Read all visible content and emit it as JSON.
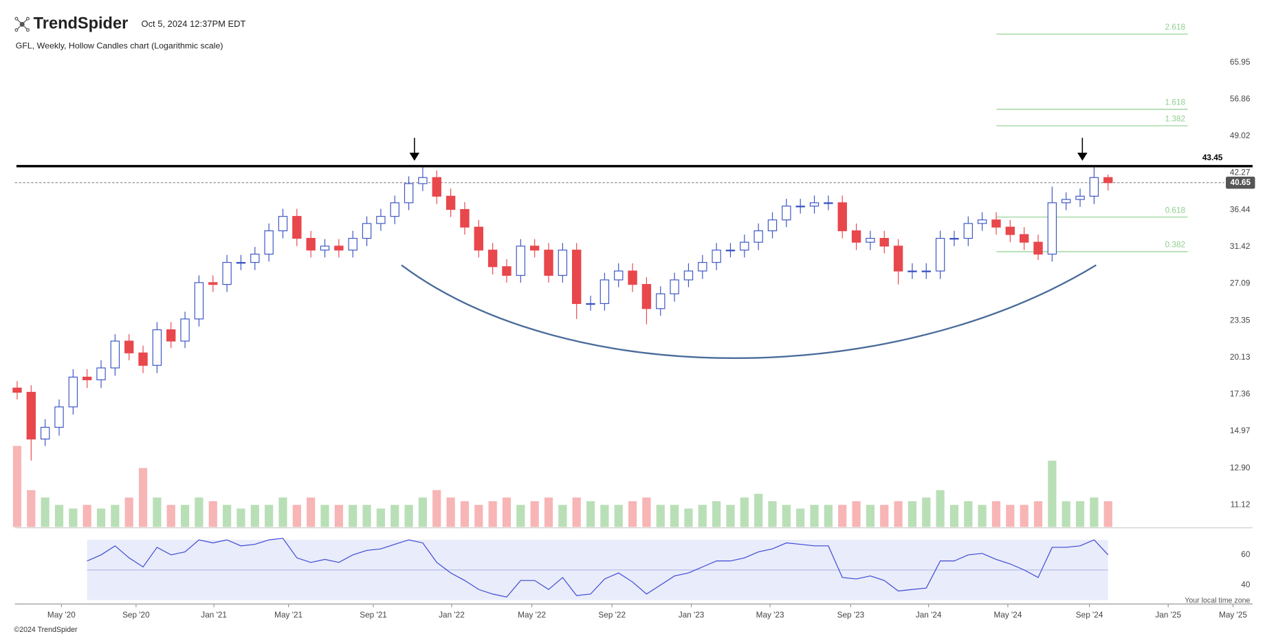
{
  "header": {
    "brand": "TrendSpider",
    "timestamp": "Oct 5, 2024 12:37PM EDT"
  },
  "chart_data": {
    "type": "candlestick",
    "title": "GFL, Weekly, Hollow Candles chart (Logarithmic scale)",
    "log_scale": true,
    "x": [
      0,
      3,
      6,
      9,
      12,
      15,
      18,
      21,
      24,
      27,
      30,
      33,
      36,
      39,
      42,
      45,
      48,
      51,
      54,
      57,
      60,
      63,
      66,
      69,
      72,
      75,
      78,
      81,
      84,
      87,
      90,
      93,
      96,
      99,
      102,
      105,
      108,
      111,
      114,
      117,
      120,
      123,
      126,
      129,
      132,
      135,
      138,
      141,
      144,
      147,
      150,
      153,
      156,
      159,
      162,
      165,
      168,
      171,
      174,
      177,
      180,
      183,
      186,
      189,
      192,
      195,
      198,
      201,
      204,
      207,
      210,
      213,
      216,
      219,
      222,
      225,
      228,
      231,
      234
    ],
    "open": [
      17.8,
      17.5,
      14.5,
      15.2,
      16.5,
      18.6,
      18.4,
      19.3,
      21.5,
      20.5,
      19.5,
      22.5,
      21.5,
      23.5,
      27.2,
      27,
      29.5,
      29.5,
      30.5,
      33.5,
      35.5,
      32.5,
      31,
      31.5,
      31,
      32.5,
      34.5,
      35.5,
      37.5,
      40.5,
      41.5,
      38.5,
      36.5,
      34,
      31,
      29,
      28,
      31.5,
      31,
      28,
      31,
      25,
      25,
      27.5,
      28.5,
      27,
      24.5,
      26,
      27.5,
      28.5,
      29.5,
      31,
      31,
      32,
      33.5,
      35,
      37,
      37,
      37.5,
      37.5,
      33.5,
      32,
      32.5,
      31.5,
      28.5,
      28.5,
      28.5,
      32.5,
      32.5,
      34.5,
      35,
      34,
      33,
      32,
      30.5,
      37.5,
      38,
      38.5,
      41.5
    ],
    "high": [
      18.3,
      18.0,
      15.7,
      17.0,
      19.2,
      19.2,
      19.9,
      22.1,
      22.1,
      21.1,
      23.2,
      23.2,
      24.2,
      28.0,
      28.0,
      30.4,
      30.4,
      31.4,
      34.5,
      36.6,
      36.6,
      33.5,
      32.4,
      32.4,
      33.5,
      35.5,
      36.6,
      38.6,
      41.7,
      43.45,
      42.7,
      39.7,
      37.6,
      35.0,
      31.9,
      29.9,
      32.4,
      32.4,
      31.9,
      31.9,
      31.9,
      25.8,
      28.3,
      29.4,
      29.4,
      27.8,
      26.8,
      28.3,
      29.4,
      30.4,
      31.9,
      31.9,
      33.0,
      34.5,
      36.1,
      38.1,
      38.1,
      38.6,
      38.6,
      38.6,
      34.5,
      33.5,
      33.5,
      32.4,
      29.4,
      29.4,
      33.5,
      33.5,
      35.5,
      36.1,
      36.1,
      35.0,
      34.0,
      33.0,
      40.0,
      39.1,
      39.7,
      43.4,
      42.0
    ],
    "low": [
      17.0,
      13.3,
      14.1,
      14.7,
      16.0,
      17.8,
      17.8,
      18.7,
      19.9,
      18.9,
      18.9,
      20.9,
      20.9,
      22.8,
      26.2,
      26.2,
      28.6,
      28.6,
      29.6,
      32.5,
      31.5,
      30.1,
      30.1,
      30.1,
      30.1,
      31.5,
      33.5,
      34.4,
      36.4,
      39.3,
      37.3,
      35.4,
      33.0,
      30.1,
      28.1,
      27.2,
      27.2,
      30.1,
      27.2,
      27.2,
      23.5,
      24.3,
      24.3,
      26.7,
      26.2,
      23.0,
      23.8,
      25.2,
      26.7,
      27.6,
      28.6,
      30.1,
      30.1,
      31.0,
      32.5,
      34.0,
      35.9,
      35.9,
      36.4,
      32.5,
      31.0,
      31.0,
      30.6,
      27.0,
      27.6,
      27.6,
      27.6,
      31.5,
      31.5,
      33.5,
      33.0,
      32.0,
      31.0,
      29.8,
      29.6,
      36.4,
      36.9,
      37.3,
      39.4
    ],
    "close": [
      17.5,
      14.5,
      15.2,
      16.5,
      18.6,
      18.4,
      19.3,
      21.5,
      20.5,
      19.5,
      22.5,
      21.5,
      23.5,
      27.2,
      27,
      29.5,
      29.5,
      30.5,
      33.5,
      35.5,
      32.5,
      31,
      31.5,
      31,
      32.5,
      34.5,
      35.5,
      37.5,
      40.5,
      41.5,
      38.5,
      36.5,
      34,
      31,
      29,
      28,
      31.5,
      31,
      28,
      31,
      25,
      25,
      27.5,
      28.5,
      27,
      24.5,
      26,
      27.5,
      28.5,
      29.5,
      31,
      31,
      32,
      33.5,
      35,
      37,
      37,
      37.5,
      37.5,
      33.5,
      32,
      32.5,
      31.5,
      28.5,
      28.5,
      28.5,
      32.5,
      32.5,
      34.5,
      35,
      34,
      33,
      32,
      30.5,
      37.5,
      38,
      38.5,
      41.5,
      40.65
    ],
    "volume": [
      11,
      5,
      4,
      3,
      2.5,
      3,
      2.5,
      3,
      4,
      8,
      4,
      3,
      3,
      4,
      3.5,
      3,
      2.5,
      3,
      3,
      4,
      3,
      4,
      3,
      3,
      3,
      3,
      2.5,
      3,
      3,
      4,
      5,
      4,
      3.5,
      3,
      3.5,
      4,
      3,
      3.5,
      4,
      3,
      4,
      3.5,
      3,
      3,
      3.5,
      4,
      3,
      3,
      2.5,
      3,
      3.5,
      3,
      4,
      4.5,
      3.5,
      3,
      2.5,
      3,
      3,
      3,
      3.5,
      3,
      3,
      3.5,
      3.5,
      4,
      5,
      3,
      3.5,
      3,
      3.5,
      3,
      3,
      3.5,
      9,
      3.5,
      3.5,
      4,
      3.5
    ],
    "up_color": "#3b55c4",
    "down_color": "#e8474c",
    "volume_up_color": "#b9dfb6",
    "volume_down_color": "#f7b5b5",
    "xlim": [
      -0.5,
      265
    ],
    "xticks": [
      {
        "value": 9.5,
        "label": "May '20"
      },
      {
        "value": 25.5,
        "label": "Sep '20"
      },
      {
        "value": 42.2,
        "label": "Jan '21"
      },
      {
        "value": 58.2,
        "label": "May '21"
      },
      {
        "value": 76.4,
        "label": "Sep '21"
      },
      {
        "value": 93.2,
        "label": "Jan '22"
      },
      {
        "value": 110.4,
        "label": "May '22"
      },
      {
        "value": 127.6,
        "label": "Sep '22"
      },
      {
        "value": 144.6,
        "label": "Jan '23"
      },
      {
        "value": 161.5,
        "label": "May '23"
      },
      {
        "value": 178.8,
        "label": "Sep '23"
      },
      {
        "value": 195.5,
        "label": "Jan '24"
      },
      {
        "value": 212.5,
        "label": "May '24"
      },
      {
        "value": 230,
        "label": "Sep '24"
      },
      {
        "value": 246.9,
        "label": "Jan '25"
      },
      {
        "value": 260.8,
        "label": "May '25"
      }
    ],
    "ylim": [
      10.18,
      79.4
    ],
    "yticks": [
      11.12,
      {
        "value": 12.9,
        "label": "12.90"
      },
      14.97,
      17.36,
      20.13,
      23.35,
      27.09,
      31.42,
      36.44,
      42.27,
      49.02,
      56.86,
      65.95
    ],
    "resistance": 43.45,
    "last_price": 40.65,
    "fib_color": "#8fcf8f",
    "fib_levels": [
      {
        "ratio": 2.618,
        "price": 73.9
      },
      {
        "ratio": 1.618,
        "price": 54.6
      },
      {
        "ratio": 1.382,
        "price": 51.1
      },
      {
        "ratio": 0.618,
        "price": 35.4
      },
      {
        "ratio": 0.382,
        "price": 30.8
      }
    ],
    "rsi": {
      "values": [
        null,
        null,
        null,
        null,
        null,
        56,
        60,
        66,
        58,
        52,
        65,
        60,
        62,
        70,
        68,
        70,
        66,
        67,
        70,
        71,
        58,
        55,
        57,
        55,
        60,
        63,
        64,
        67,
        70,
        68,
        55,
        48,
        43,
        37,
        34,
        32,
        43,
        43,
        37,
        45,
        33,
        34,
        44,
        48,
        42,
        34,
        40,
        46,
        48,
        52,
        56,
        56,
        58,
        62,
        64,
        68,
        67,
        66,
        66,
        45,
        44,
        46,
        43,
        36,
        37,
        38,
        56,
        56,
        60,
        61,
        57,
        54,
        50,
        45,
        65,
        65,
        66,
        70,
        60
      ],
      "ylim": [
        29,
        71
      ],
      "yticks": [
        60,
        40
      ],
      "band": [
        30,
        70
      ],
      "color": "#3b46d6"
    },
    "timezone_note": "Your local time zone"
  },
  "footer": {
    "copyright": "©2024 TrendSpider"
  }
}
